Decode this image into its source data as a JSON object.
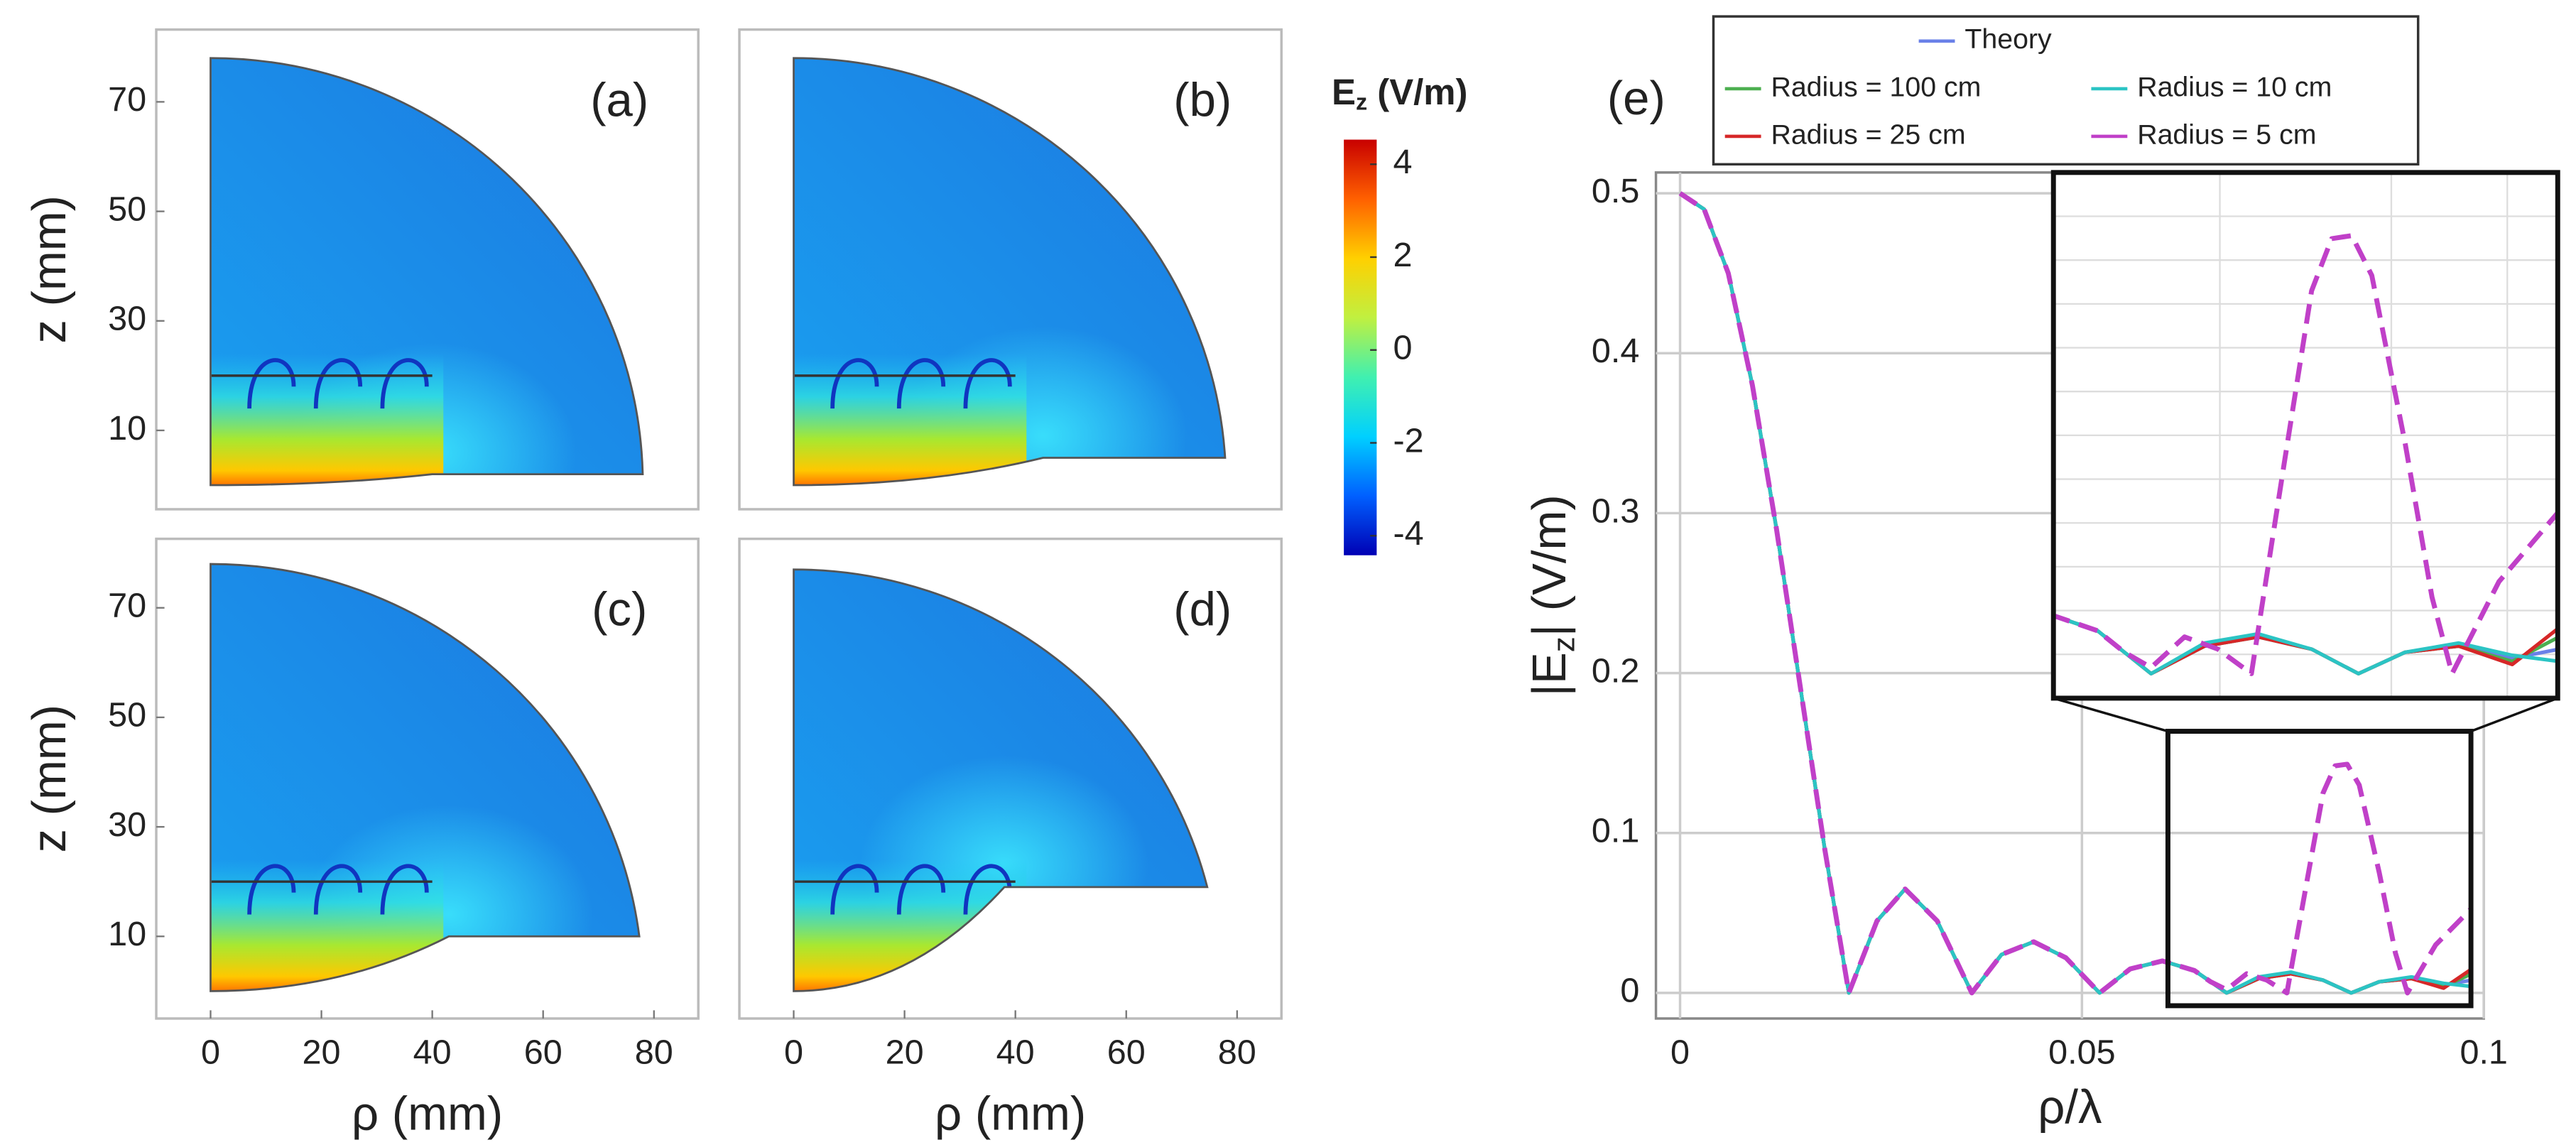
{
  "chart_data": [
    {
      "type": "field",
      "title": "(a)",
      "ylabel": "z (mm)",
      "xlim": [
        -9.8,
        88
      ],
      "ylim": [
        -4.4,
        83.2
      ],
      "yticks": [
        10,
        30,
        50,
        70
      ]
    },
    {
      "type": "field",
      "title": "(b)",
      "xlim": [
        -9.8,
        88
      ],
      "ylim": [
        -4.4,
        83.2
      ]
    },
    {
      "type": "field",
      "title": "(c)",
      "xlabel": "ρ (mm)",
      "ylabel": "z (mm)",
      "xlim": [
        -9.8,
        88
      ],
      "ylim": [
        -5,
        82.6
      ],
      "xticks": [
        0,
        20,
        40,
        60,
        80
      ],
      "yticks": [
        10,
        30,
        50,
        70
      ]
    },
    {
      "type": "field",
      "title": "(d)",
      "xlabel": "ρ (mm)",
      "xlim": [
        -9.8,
        88
      ],
      "ylim": [
        -5,
        82.6
      ],
      "xticks": [
        0,
        20,
        40,
        60,
        80
      ]
    },
    {
      "type": "colorbar",
      "title": [
        "E",
        "z",
        " (V/m)"
      ],
      "ylim": [
        -4.42,
        4.53
      ],
      "yticks": [
        -4,
        -2,
        0,
        2,
        4
      ],
      "colors": [
        "#0000b4",
        "#0060ff",
        "#00d0ff",
        "#40f0b0",
        "#c0f040",
        "#ffd000",
        "#ff6000",
        "#c80000"
      ]
    },
    {
      "type": "line",
      "title": "(e)",
      "xlabel": "ρ/λ",
      "ylabel": [
        "|E",
        "z",
        "|  (V/m)"
      ],
      "legend": "top",
      "grid": true,
      "xlim": [
        -0.003,
        0.1
      ],
      "ylim": [
        -0.016,
        0.513
      ],
      "xticks": [
        0,
        0.05,
        0.1
      ],
      "yticks": [
        0,
        0.1,
        0.2,
        0.3,
        0.4,
        0.5
      ],
      "inset": {
        "xlim": [
          0.0607,
          0.0984
        ],
        "ylim": [
          -0.008,
          0.1636
        ]
      },
      "series": [
        {
          "name": "Theory",
          "color": "#6a80e8",
          "dashed": false,
          "x": [
            0,
            0.003,
            0.006,
            0.009,
            0.012,
            0.015,
            0.018,
            0.021,
            0.0245,
            0.028,
            0.032,
            0.0363,
            0.04,
            0.044,
            0.048,
            0.0522,
            0.056,
            0.06,
            0.064,
            0.068,
            0.072,
            0.076,
            0.08,
            0.0835,
            0.087,
            0.091,
            0.095,
            0.0985
          ],
          "values": [
            0.5,
            0.49,
            0.45,
            0.38,
            0.29,
            0.19,
            0.09,
            0,
            0.045,
            0.065,
            0.045,
            0,
            0.024,
            0.032,
            0.022,
            0,
            0.015,
            0.02,
            0.014,
            0,
            0.009,
            0.012,
            0.008,
            0,
            0.007,
            0.009,
            0.005,
            0.008
          ]
        },
        {
          "name": "Radius = 100 cm",
          "color": "#4caf50",
          "dashed": false,
          "x": [
            0,
            0.003,
            0.006,
            0.009,
            0.012,
            0.015,
            0.018,
            0.021,
            0.0245,
            0.028,
            0.032,
            0.0363,
            0.04,
            0.044,
            0.048,
            0.0522,
            0.056,
            0.06,
            0.064,
            0.068,
            0.072,
            0.076,
            0.08,
            0.0835,
            0.087,
            0.091,
            0.095,
            0.0985
          ],
          "values": [
            0.5,
            0.49,
            0.45,
            0.38,
            0.29,
            0.19,
            0.09,
            0,
            0.045,
            0.065,
            0.045,
            0,
            0.024,
            0.032,
            0.022,
            0,
            0.015,
            0.02,
            0.014,
            0,
            0.009,
            0.012,
            0.008,
            0,
            0.007,
            0.009,
            0.004,
            0.012
          ]
        },
        {
          "name": "Radius = 25 cm",
          "color": "#d62728",
          "dashed": false,
          "x": [
            0,
            0.003,
            0.006,
            0.009,
            0.012,
            0.015,
            0.018,
            0.021,
            0.0245,
            0.028,
            0.032,
            0.0363,
            0.04,
            0.044,
            0.048,
            0.0522,
            0.056,
            0.06,
            0.064,
            0.068,
            0.072,
            0.076,
            0.08,
            0.0835,
            0.087,
            0.091,
            0.095,
            0.0985
          ],
          "values": [
            0.5,
            0.49,
            0.45,
            0.38,
            0.29,
            0.19,
            0.09,
            0,
            0.045,
            0.065,
            0.045,
            0,
            0.024,
            0.032,
            0.022,
            0,
            0.015,
            0.02,
            0.014,
            0,
            0.009,
            0.012,
            0.008,
            0,
            0.007,
            0.009,
            0.003,
            0.015
          ]
        },
        {
          "name": "Radius = 10 cm",
          "color": "#2bc4c4",
          "dashed": false,
          "x": [
            0,
            0.003,
            0.006,
            0.009,
            0.012,
            0.015,
            0.018,
            0.021,
            0.0245,
            0.028,
            0.032,
            0.0363,
            0.04,
            0.044,
            0.048,
            0.0522,
            0.056,
            0.06,
            0.064,
            0.068,
            0.072,
            0.076,
            0.08,
            0.0835,
            0.087,
            0.091,
            0.095,
            0.0985
          ],
          "values": [
            0.5,
            0.49,
            0.45,
            0.38,
            0.29,
            0.19,
            0.09,
            0,
            0.045,
            0.065,
            0.045,
            0,
            0.024,
            0.032,
            0.022,
            0,
            0.015,
            0.02,
            0.014,
            0,
            0.01,
            0.013,
            0.008,
            0,
            0.007,
            0.01,
            0.006,
            0.004
          ]
        },
        {
          "name": "Radius = 5 cm",
          "color": "#c040c8",
          "dashed": true,
          "x": [
            0,
            0.003,
            0.006,
            0.009,
            0.012,
            0.015,
            0.018,
            0.021,
            0.0245,
            0.028,
            0.032,
            0.0363,
            0.04,
            0.044,
            0.048,
            0.0522,
            0.056,
            0.06,
            0.064,
            0.066,
            0.068,
            0.0705,
            0.073,
            0.0755,
            0.078,
            0.08,
            0.0815,
            0.083,
            0.0845,
            0.087,
            0.089,
            0.0905,
            0.094,
            0.0985
          ],
          "values": [
            0.5,
            0.49,
            0.45,
            0.38,
            0.29,
            0.19,
            0.09,
            0,
            0.045,
            0.065,
            0.045,
            0,
            0.024,
            0.032,
            0.022,
            0,
            0.015,
            0.02,
            0.014,
            0.007,
            0.002,
            0.012,
            0.008,
            0,
            0.07,
            0.125,
            0.142,
            0.143,
            0.13,
            0.075,
            0.025,
            0,
            0.03,
            0.053
          ]
        }
      ]
    }
  ]
}
